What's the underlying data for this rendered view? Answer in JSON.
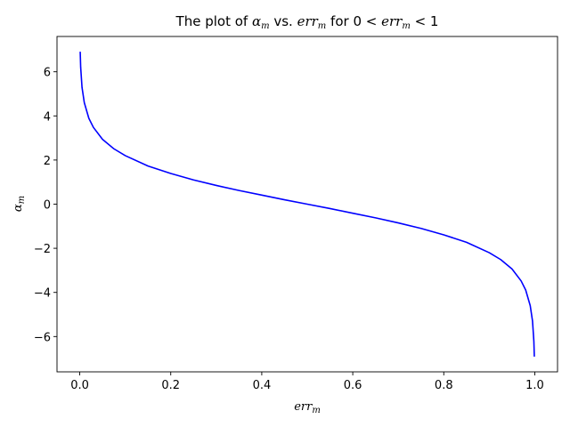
{
  "chart_data": {
    "type": "line",
    "title": {
      "prefix": "The plot of ",
      "var1_main": "α",
      "var1_sub": "m",
      "middle": " vs. ",
      "var2_main": "err",
      "var2_sub": "m",
      "lower_text": " for 0 < ",
      "upper_text": " < 1"
    },
    "xlabel": {
      "main": "err",
      "sub": "m"
    },
    "ylabel": {
      "main": "α",
      "sub": "m"
    },
    "xlim": [
      -0.05,
      1.05
    ],
    "ylim": [
      -7.6,
      7.6
    ],
    "xticks": [
      0.0,
      0.2,
      0.4,
      0.6,
      0.8,
      1.0
    ],
    "xtick_labels": [
      "0.0",
      "0.2",
      "0.4",
      "0.6",
      "0.8",
      "1.0"
    ],
    "yticks": [
      -6,
      -4,
      -2,
      0,
      2,
      4,
      6
    ],
    "ytick_labels": [
      "−6",
      "−4",
      "−2",
      "0",
      "2",
      "4",
      "6"
    ],
    "grid": false,
    "series": [
      {
        "color": "#0000ff",
        "x": [
          0.001,
          0.002,
          0.005,
          0.01,
          0.02,
          0.03,
          0.05,
          0.075,
          0.1,
          0.15,
          0.2,
          0.25,
          0.3,
          0.35,
          0.4,
          0.45,
          0.5,
          0.55,
          0.6,
          0.65,
          0.7,
          0.75,
          0.8,
          0.85,
          0.9,
          0.925,
          0.95,
          0.97,
          0.98,
          0.99,
          0.995,
          0.998,
          0.999
        ],
        "y": [
          6.91,
          6.21,
          5.29,
          4.6,
          3.89,
          3.48,
          2.94,
          2.51,
          2.2,
          1.73,
          1.39,
          1.1,
          0.85,
          0.62,
          0.41,
          0.2,
          0.0,
          -0.2,
          -0.41,
          -0.62,
          -0.85,
          -1.1,
          -1.39,
          -1.73,
          -2.2,
          -2.51,
          -2.94,
          -3.48,
          -3.89,
          -4.6,
          -5.29,
          -6.21,
          -6.91
        ]
      }
    ]
  }
}
